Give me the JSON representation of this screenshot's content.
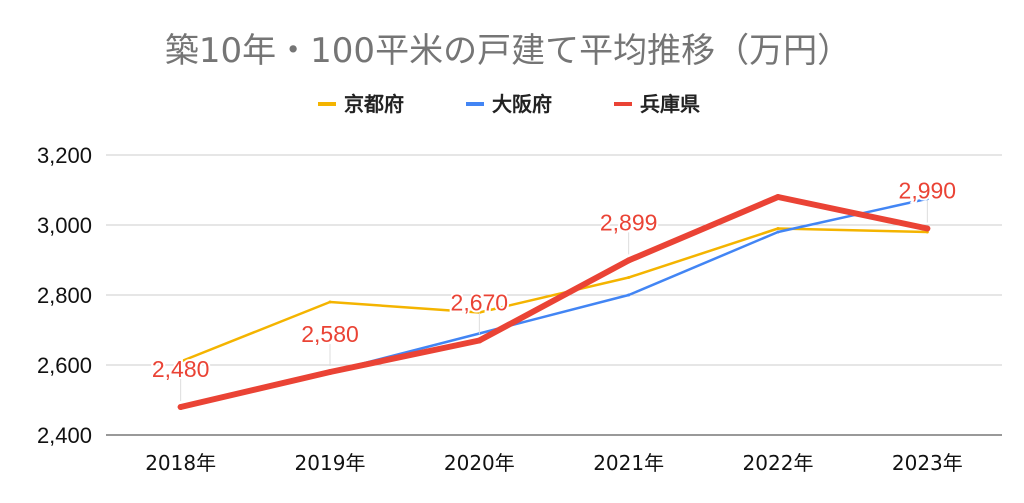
{
  "chart_data": {
    "type": "line",
    "title": "築10年・100平米の戸建て平均推移（万円）",
    "categories": [
      "2018年",
      "2019年",
      "2020年",
      "2021年",
      "2022年",
      "2023年"
    ],
    "ylim": [
      2400,
      3200
    ],
    "yticks": [
      2400,
      2600,
      2800,
      3000,
      3200
    ],
    "ytick_labels": [
      "2,400",
      "2,600",
      "2,800",
      "3,000",
      "3,200"
    ],
    "grid": true,
    "legend_position": "top",
    "series": [
      {
        "name": "京都府",
        "color": "#F4B400",
        "values": [
          2610,
          2780,
          2750,
          2850,
          2990,
          2980
        ]
      },
      {
        "name": "大阪府",
        "color": "#4285F4",
        "values": [
          2480,
          2580,
          2690,
          2800,
          2980,
          3075
        ]
      },
      {
        "name": "兵庫県",
        "color": "#EA4335",
        "values": [
          2480,
          2580,
          2670,
          2899,
          3080,
          2990
        ],
        "data_labels": [
          "2,480",
          "2,580",
          "2,670",
          "2,899",
          "",
          "2,990"
        ]
      }
    ]
  }
}
